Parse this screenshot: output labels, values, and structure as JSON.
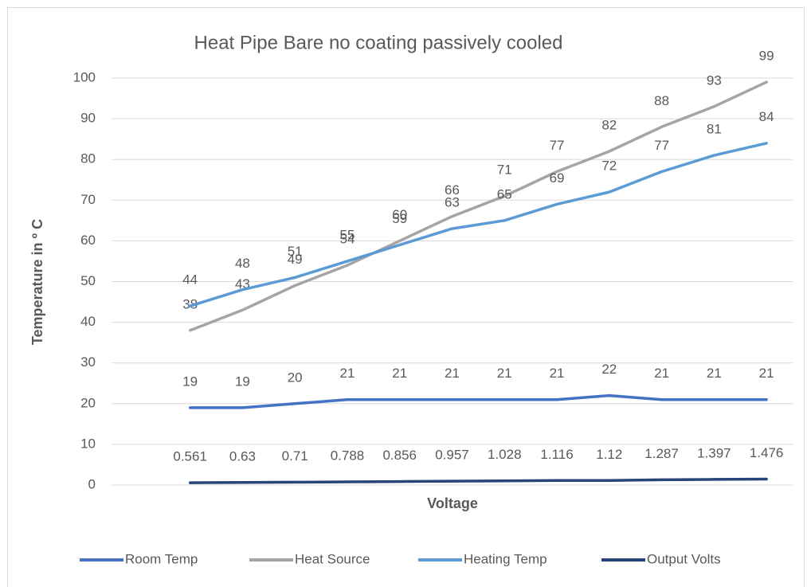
{
  "chart_data": {
    "type": "line",
    "title": "Heat Pipe Bare no coating passively cooled",
    "x_label": "Voltage",
    "y_label": "Temperature in º C",
    "categories": [
      null,
      null,
      null,
      null,
      null,
      null,
      null,
      null,
      null,
      null,
      null,
      null
    ],
    "ylim": [
      0,
      100
    ],
    "yticks": [
      0,
      10,
      20,
      30,
      40,
      50,
      60,
      70,
      80,
      90,
      100
    ],
    "grid": true,
    "legend": "bottom",
    "series": [
      {
        "name": "Room Temp",
        "color": "#4472c4",
        "values": [
          19,
          19,
          20,
          21,
          21,
          21,
          21,
          21,
          22,
          21,
          21,
          21
        ]
      },
      {
        "name": "Heat Source",
        "color": "#a5a5a5",
        "values": [
          38,
          43,
          49,
          54,
          60,
          66,
          71,
          77,
          82,
          88,
          93,
          99
        ]
      },
      {
        "name": "Heating Temp",
        "color": "#5b9bd5",
        "values": [
          44,
          48,
          51,
          55,
          59,
          63,
          65,
          69,
          72,
          77,
          81,
          84
        ]
      },
      {
        "name": "Output Volts",
        "color": "#264478",
        "values": [
          0.561,
          0.63,
          0.71,
          0.788,
          0.856,
          0.957,
          1.028,
          1.116,
          1.12,
          1.287,
          1.397,
          1.476
        ]
      }
    ]
  }
}
